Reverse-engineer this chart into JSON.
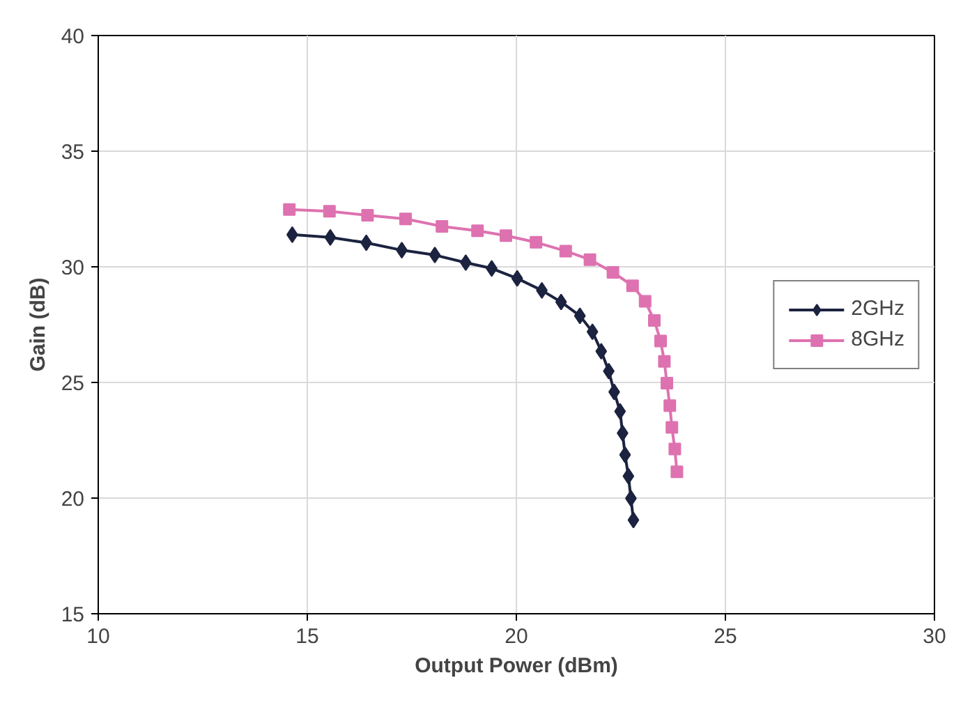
{
  "chart_data": {
    "type": "line",
    "xlabel": "Output Power (dBm)",
    "ylabel": "Gain (dB)",
    "xlim": [
      10,
      30
    ],
    "ylim": [
      15,
      40
    ],
    "xticks": [
      10,
      15,
      20,
      25,
      30
    ],
    "yticks": [
      15,
      20,
      25,
      30,
      35,
      40
    ],
    "grid": true,
    "legend": "right",
    "line_style": "solid",
    "series": [
      {
        "name": "2GHz",
        "color": "#1c2340",
        "marker": "diamond",
        "x": [
          14.64,
          15.55,
          16.41,
          17.26,
          18.05,
          18.79,
          19.41,
          20.02,
          20.61,
          21.07,
          21.52,
          21.82,
          22.03,
          22.21,
          22.34,
          22.48,
          22.54,
          22.6,
          22.68,
          22.74,
          22.8
        ],
        "values": [
          31.39,
          31.27,
          31.04,
          30.72,
          30.51,
          30.18,
          29.93,
          29.5,
          28.98,
          28.48,
          27.88,
          27.19,
          26.35,
          25.49,
          24.59,
          23.75,
          22.81,
          21.87,
          20.95,
          19.99,
          19.05
        ]
      },
      {
        "name": "8GHz",
        "color": "#de72b0",
        "marker": "square",
        "x": [
          14.57,
          15.53,
          16.44,
          17.35,
          18.22,
          19.07,
          19.75,
          20.47,
          21.18,
          21.76,
          22.31,
          22.78,
          23.08,
          23.3,
          23.45,
          23.54,
          23.6,
          23.67,
          23.72,
          23.79,
          23.84
        ],
        "values": [
          32.48,
          32.4,
          32.23,
          32.07,
          31.75,
          31.56,
          31.35,
          31.06,
          30.68,
          30.31,
          29.76,
          29.18,
          28.51,
          27.68,
          26.79,
          25.91,
          24.97,
          24.0,
          23.06,
          22.12,
          21.14
        ]
      }
    ]
  }
}
